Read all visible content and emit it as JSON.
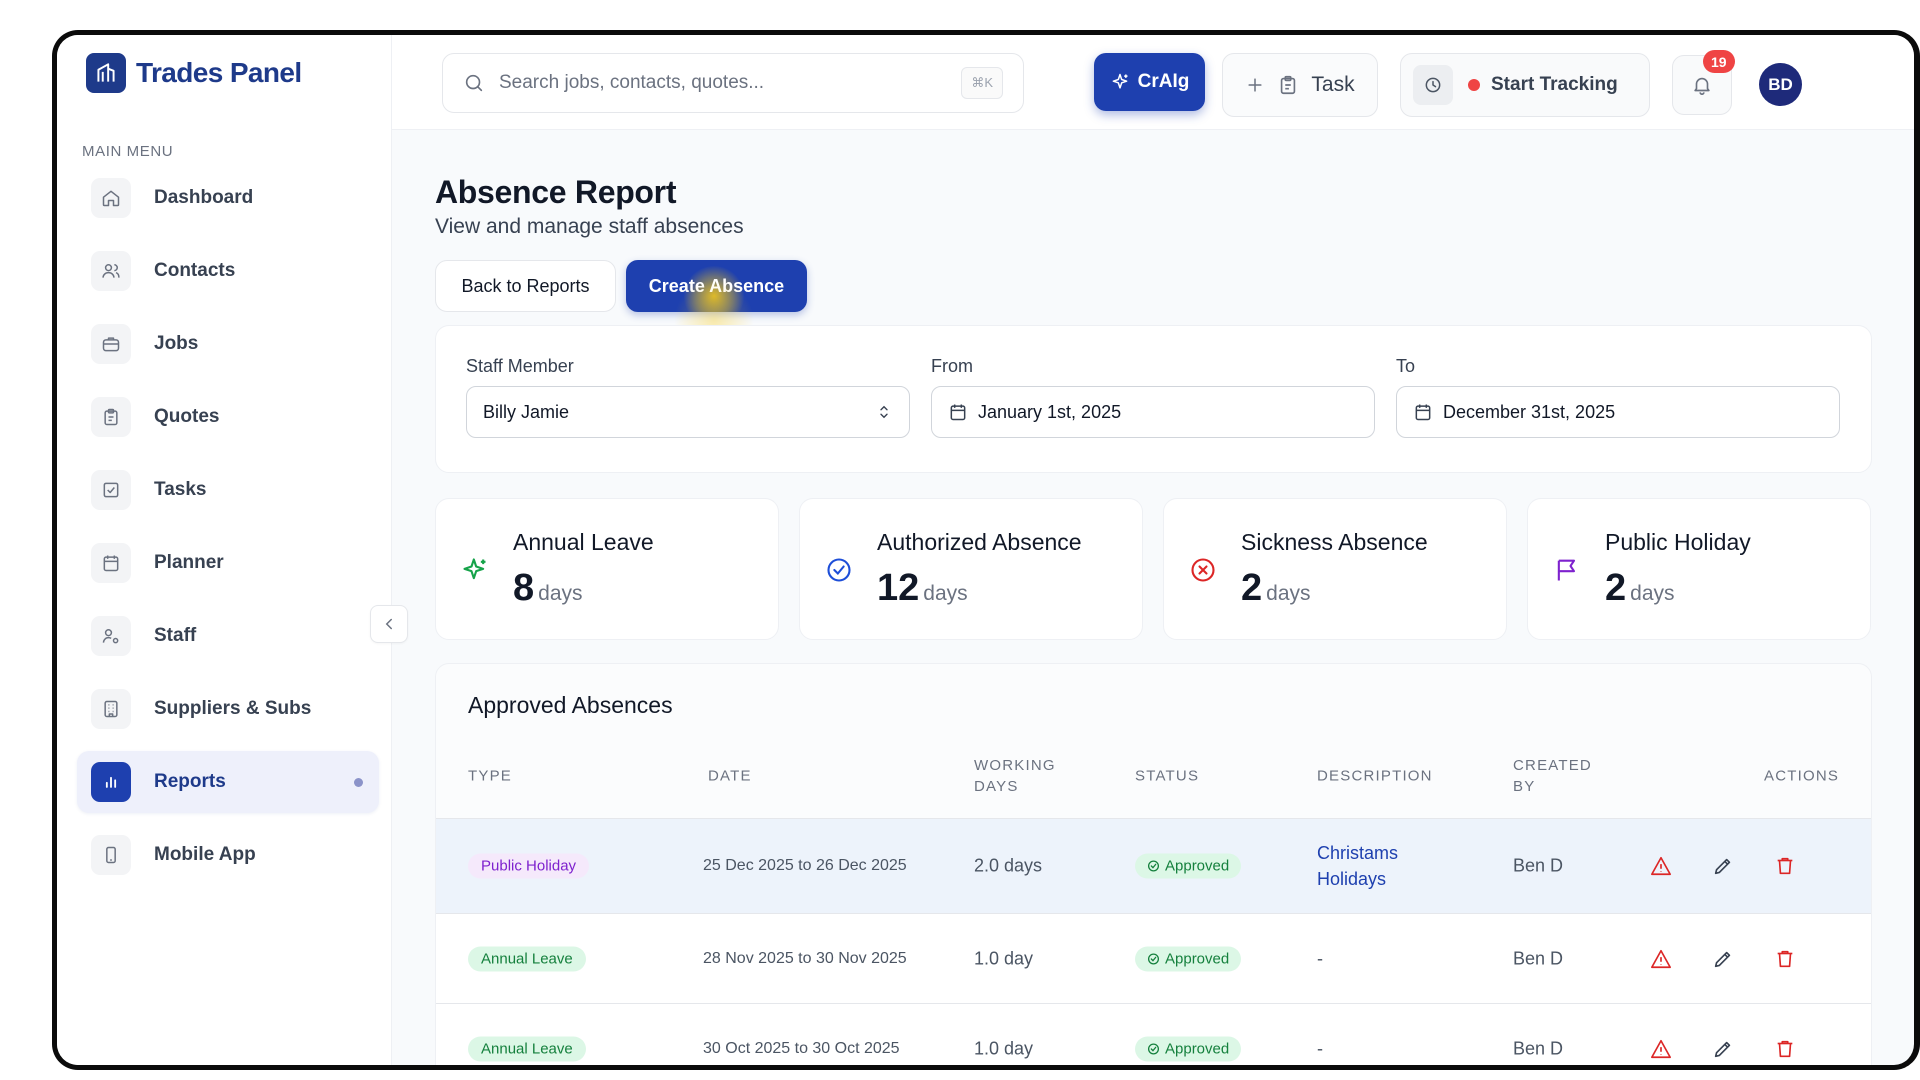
{
  "brand": {
    "name": "Trades Panel"
  },
  "sidebar": {
    "heading": "MAIN MENU",
    "items": [
      {
        "label": "Dashboard",
        "icon": "home-icon"
      },
      {
        "label": "Contacts",
        "icon": "users-icon"
      },
      {
        "label": "Jobs",
        "icon": "briefcase-icon"
      },
      {
        "label": "Quotes",
        "icon": "clipboard-icon"
      },
      {
        "label": "Tasks",
        "icon": "checkbox-icon"
      },
      {
        "label": "Planner",
        "icon": "calendar-icon"
      },
      {
        "label": "Staff",
        "icon": "user-cog-icon"
      },
      {
        "label": "Suppliers & Subs",
        "icon": "building-icon"
      },
      {
        "label": "Reports",
        "icon": "bar-chart-icon",
        "active": true
      },
      {
        "label": "Mobile App",
        "icon": "smartphone-icon"
      }
    ]
  },
  "topbar": {
    "search_placeholder": "Search jobs, contacts, quotes...",
    "search_shortcut": "⌘K",
    "craig_label": "CrAIg",
    "task_label": "Task",
    "tracking_label": "Start Tracking",
    "notifications_count": "19",
    "avatar_initials": "BD"
  },
  "page": {
    "title": "Absence Report",
    "subtitle": "View and manage staff absences",
    "back_label": "Back to Reports",
    "create_label": "Create Absence"
  },
  "filters": {
    "staff_label": "Staff Member",
    "staff_value": "Billy Jamie",
    "from_label": "From",
    "from_value": "January 1st, 2025",
    "to_label": "To",
    "to_value": "December 31st, 2025"
  },
  "stats": [
    {
      "title": "Annual Leave",
      "value": "8",
      "unit": "days",
      "color": "#16a34a",
      "icon": "sparkles-icon"
    },
    {
      "title": "Authorized Absence",
      "value": "12",
      "unit": "days",
      "color": "#1d4ed8",
      "icon": "check-circle-icon"
    },
    {
      "title": "Sickness Absence",
      "value": "2",
      "unit": "days",
      "color": "#dc2626",
      "icon": "x-circle-icon"
    },
    {
      "title": "Public Holiday",
      "value": "2",
      "unit": "days",
      "color": "#7e22ce",
      "icon": "flag-icon"
    }
  ],
  "table": {
    "title": "Approved Absences",
    "columns": {
      "type": "TYPE",
      "date": "DATE",
      "working_days_1": "WORKING",
      "working_days_2": "DAYS",
      "status": "STATUS",
      "description": "DESCRIPTION",
      "created_by_1": "CREATED",
      "created_by_2": "BY",
      "actions": "ACTIONS"
    },
    "rows": [
      {
        "type": "Public Holiday",
        "date": "25 Dec 2025 to 26 Dec 2025",
        "working_days": "2.0 days",
        "status": "Approved",
        "description_1": "Christams",
        "description_2": "Holidays",
        "created_by": "Ben D"
      },
      {
        "type": "Annual Leave",
        "date": "28 Nov 2025 to 30 Nov 2025",
        "working_days": "1.0 day",
        "status": "Approved",
        "description": "-",
        "created_by": "Ben D"
      },
      {
        "type": "Annual Leave",
        "date": "30 Oct 2025 to 30 Oct 2025",
        "working_days": "1.0 day",
        "status": "Approved",
        "description": "-",
        "created_by": "Ben D"
      }
    ]
  },
  "colors": {
    "primary": "#1e40af",
    "danger": "#dc2626",
    "success": "#15803d"
  }
}
